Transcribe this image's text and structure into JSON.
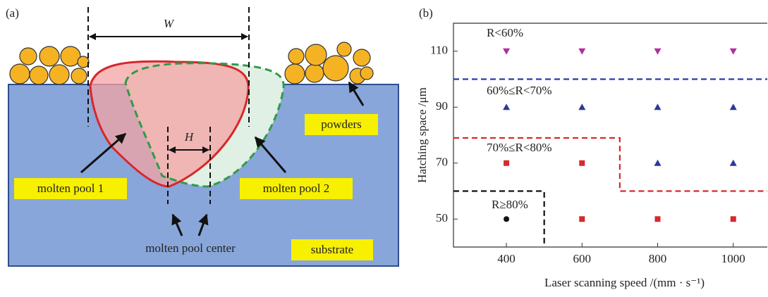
{
  "panel_a": {
    "label": "(a)",
    "width_symbol": "W",
    "center_distance_symbol": "H",
    "labels": {
      "powders": "powders",
      "pool1": "molten pool 1",
      "pool2": "molten pool 2",
      "center": "molten pool center",
      "substrate": "substrate"
    }
  },
  "chart_data": {
    "type": "scatter",
    "panel_label": "(b)",
    "x_label": "Laser scanning speed /(mm · s⁻¹)",
    "y_label": "Hatching space /μm",
    "xlim": [
      260,
      1090
    ],
    "ylim": [
      40,
      120
    ],
    "xticks": [
      400,
      600,
      800,
      1000
    ],
    "yticks": [
      50,
      70,
      90,
      110
    ],
    "series": [
      {
        "name": "R<60%",
        "color": "#b0309a",
        "marker": "triangle-down",
        "x": [
          400,
          600,
          800,
          1000
        ],
        "values": [
          110,
          110,
          110,
          110
        ]
      },
      {
        "name": "60%≤R<70%",
        "color": "#2a3a9a",
        "marker": "triangle-up",
        "x": [
          400,
          600,
          800,
          1000,
          800,
          1000
        ],
        "values": [
          90,
          90,
          90,
          90,
          70,
          70
        ]
      },
      {
        "name": "70%≤R<80%",
        "color": "#d9282b",
        "marker": "square",
        "x": [
          400,
          600,
          600,
          800,
          1000
        ],
        "values": [
          70,
          70,
          50,
          50,
          50
        ]
      },
      {
        "name": "R≥80%",
        "color": "#111111",
        "marker": "circle",
        "x": [
          400
        ],
        "values": [
          50
        ]
      }
    ],
    "boundaries": [
      {
        "color": "#2a3aa8",
        "x": [
          260,
          1090
        ],
        "values": [
          100,
          100
        ]
      },
      {
        "color": "#d9282b",
        "x": [
          260,
          700,
          700,
          1090
        ],
        "values": [
          79,
          79,
          60,
          60
        ]
      },
      {
        "color": "#111111",
        "x": [
          260,
          500,
          500
        ],
        "values": [
          60,
          60,
          40
        ]
      }
    ]
  }
}
